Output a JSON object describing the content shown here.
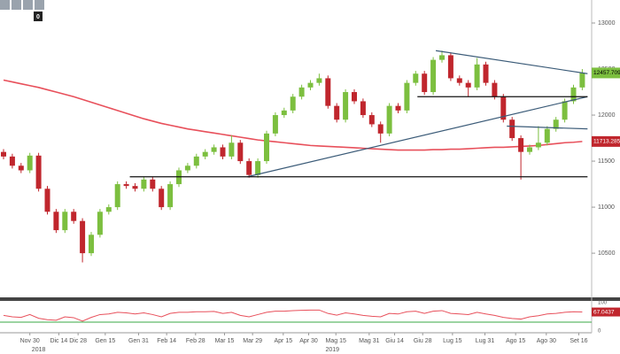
{
  "chart_data": {
    "type": "candlestick",
    "ylim": [
      10030,
      13250
    ],
    "yticks": [
      10500,
      11000,
      11500,
      12000,
      12500,
      13000
    ],
    "badge": "0",
    "up_color": "#7cbf3f",
    "down_color": "#c0262d",
    "open": [
      11600,
      11550,
      11450,
      11400,
      11560,
      11200,
      10950,
      10750,
      10950,
      10850,
      10500,
      10700,
      10950,
      11000,
      11250,
      11230,
      11200,
      11300,
      11200,
      11000,
      11250,
      11400,
      11450,
      11550,
      11600,
      11650,
      11550,
      11700,
      11500,
      11350,
      11500,
      11800,
      12000,
      12050,
      12200,
      12300,
      12350,
      12400,
      12100,
      11950,
      12250,
      12150,
      12000,
      11900,
      11800,
      12100,
      12050,
      12350,
      12450,
      12250,
      12600,
      12650,
      12400,
      12350,
      12300,
      12550,
      12350,
      12200,
      11950,
      11750,
      11600,
      11650,
      11700,
      11850,
      11950,
      12150,
      12300
    ],
    "high": [
      11630,
      11580,
      11480,
      11590,
      11590,
      11230,
      10980,
      10980,
      10980,
      10880,
      10730,
      10980,
      11030,
      11280,
      11280,
      11260,
      11330,
      11330,
      11230,
      11280,
      11430,
      11480,
      11580,
      11630,
      11680,
      11680,
      11780,
      11730,
      11530,
      11530,
      11830,
      12030,
      12080,
      12230,
      12330,
      12380,
      12450,
      12430,
      12130,
      12280,
      12280,
      12180,
      12030,
      11930,
      12130,
      12130,
      12380,
      12480,
      12480,
      12630,
      12700,
      12680,
      12430,
      12380,
      12620,
      12580,
      12380,
      12230,
      11980,
      11780,
      11680,
      11880,
      11880,
      11980,
      12180,
      12330,
      12500
    ],
    "low": [
      11520,
      11420,
      11370,
      11370,
      11170,
      10920,
      10720,
      10720,
      10820,
      10400,
      10470,
      10670,
      10920,
      10970,
      11200,
      11170,
      11170,
      11170,
      10970,
      10970,
      11220,
      11370,
      11420,
      11520,
      11570,
      11520,
      11520,
      11470,
      11320,
      11320,
      11470,
      11770,
      11970,
      12020,
      12170,
      12270,
      12320,
      12070,
      11920,
      11920,
      12120,
      11970,
      11870,
      11700,
      11770,
      12020,
      12020,
      12320,
      12220,
      12220,
      12570,
      12370,
      12320,
      12200,
      12270,
      12320,
      12170,
      11920,
      11720,
      11300,
      11570,
      11620,
      11670,
      11820,
      11920,
      12120,
      12270
    ],
    "close": [
      11550,
      11450,
      11400,
      11560,
      11200,
      10950,
      10750,
      10950,
      10850,
      10500,
      10700,
      10950,
      11000,
      11250,
      11230,
      11200,
      11300,
      11200,
      11000,
      11250,
      11400,
      11450,
      11550,
      11600,
      11650,
      11550,
      11700,
      11500,
      11350,
      11500,
      11800,
      12000,
      12050,
      12200,
      12300,
      12350,
      12400,
      12100,
      11950,
      12250,
      12150,
      12000,
      11900,
      11800,
      12100,
      12050,
      12350,
      12450,
      12250,
      12600,
      12650,
      12400,
      12350,
      12300,
      12550,
      12350,
      12200,
      11950,
      11750,
      11600,
      11650,
      11700,
      11850,
      11950,
      12150,
      12300,
      12457.7092
    ],
    "moving_average": {
      "color": "#e8505b",
      "values": [
        12380,
        12360,
        12340,
        12320,
        12300,
        12275,
        12250,
        12225,
        12200,
        12170,
        12140,
        12110,
        12080,
        12050,
        12020,
        11990,
        11960,
        11935,
        11910,
        11890,
        11870,
        11850,
        11835,
        11820,
        11805,
        11790,
        11775,
        11760,
        11745,
        11730,
        11720,
        11710,
        11700,
        11690,
        11680,
        11670,
        11665,
        11660,
        11655,
        11650,
        11645,
        11640,
        11635,
        11630,
        11625,
        11620,
        11620,
        11620,
        11620,
        11625,
        11625,
        11630,
        11630,
        11635,
        11640,
        11645,
        11650,
        11650,
        11655,
        11660,
        11665,
        11670,
        11680,
        11690,
        11700,
        11705,
        11713.2857
      ]
    },
    "trendlines": [
      {
        "color": "#3b5b78",
        "from": [
          27.8,
          11330
        ],
        "to": [
          66.6,
          12200
        ]
      },
      {
        "color": "#3b5b78",
        "from": [
          49.3,
          12700
        ],
        "to": [
          66.6,
          12450
        ]
      },
      {
        "color": "#3b5b78",
        "from": [
          57.4,
          11880
        ],
        "to": [
          66.6,
          11850
        ]
      },
      {
        "color": "#111111",
        "from": [
          14.4,
          11330
        ],
        "to": [
          66.6,
          11330
        ]
      },
      {
        "color": "#111111",
        "from": [
          47.2,
          12200
        ],
        "to": [
          66.6,
          12200
        ]
      }
    ],
    "x_labels": [
      {
        "index": 3,
        "label": "Nov 30"
      },
      {
        "index": 6.3,
        "label": "Dic 14"
      },
      {
        "index": 8.5,
        "label": "Dic 28"
      },
      {
        "index": 11.6,
        "label": "Gen 15"
      },
      {
        "index": 15.4,
        "label": "Gen 31"
      },
      {
        "index": 18.6,
        "label": "Feb 14"
      },
      {
        "index": 21.9,
        "label": "Feb 28"
      },
      {
        "index": 25.2,
        "label": "Mar 15"
      },
      {
        "index": 28.4,
        "label": "Mar 29"
      },
      {
        "index": 31.9,
        "label": "Apr 15"
      },
      {
        "index": 34.8,
        "label": "Apr 30"
      },
      {
        "index": 37.9,
        "label": "Mag 15"
      },
      {
        "index": 41.7,
        "label": "Mag 31"
      },
      {
        "index": 44.6,
        "label": "Giu 14"
      },
      {
        "index": 47.8,
        "label": "Giu 28"
      },
      {
        "index": 51.2,
        "label": "Lug 15"
      },
      {
        "index": 54.9,
        "label": "Lug 31"
      },
      {
        "index": 58.4,
        "label": "Ago 15"
      },
      {
        "index": 61.9,
        "label": "Ago 30"
      },
      {
        "index": 65.6,
        "label": "Set 16"
      }
    ],
    "year_labels": [
      {
        "index": 4,
        "label": "2018"
      },
      {
        "index": 37.5,
        "label": "2019"
      }
    ],
    "oscillator": {
      "color": "#e8505b",
      "ylim": [
        0,
        100
      ],
      "yticks": [
        0,
        100
      ],
      "values": [
        55,
        50,
        48,
        58,
        45,
        40,
        38,
        50,
        47,
        35,
        48,
        58,
        60,
        66,
        64,
        60,
        64,
        58,
        50,
        62,
        66,
        66,
        68,
        68,
        69,
        62,
        66,
        55,
        50,
        58,
        66,
        70,
        70,
        72,
        73,
        74,
        74,
        62,
        56,
        64,
        60,
        55,
        52,
        50,
        62,
        60,
        68,
        70,
        62,
        70,
        72,
        62,
        60,
        58,
        66,
        60,
        55,
        48,
        44,
        42,
        50,
        54,
        60,
        62,
        66,
        68,
        67.0437
      ]
    }
  }
}
